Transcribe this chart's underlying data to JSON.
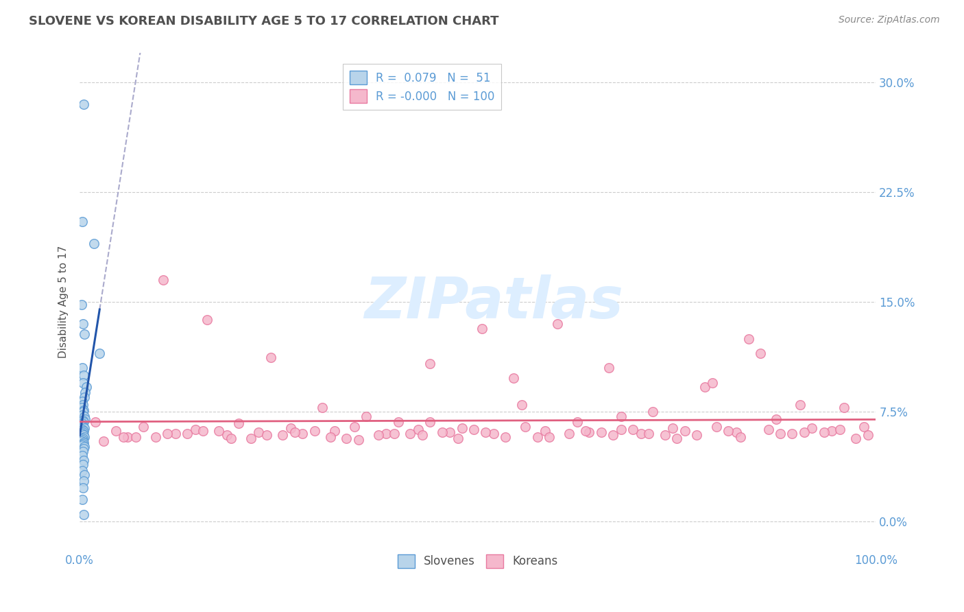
{
  "title": "SLOVENE VS KOREAN DISABILITY AGE 5 TO 17 CORRELATION CHART",
  "source_text": "Source: ZipAtlas.com",
  "ylabel": "Disability Age 5 to 17",
  "xlim": [
    0.0,
    100.0
  ],
  "ylim": [
    -2.0,
    32.0
  ],
  "ytick_labels": [
    "0.0%",
    "7.5%",
    "15.0%",
    "22.5%",
    "30.0%"
  ],
  "ytick_values": [
    0.0,
    7.5,
    15.0,
    22.5,
    30.0
  ],
  "xtick_labels": [
    "0.0%",
    "100.0%"
  ],
  "xtick_values": [
    0.0,
    100.0
  ],
  "slovene_color": "#b8d4ea",
  "korean_color": "#f5b8cc",
  "slovene_edge_color": "#5b9bd5",
  "korean_edge_color": "#e87aa0",
  "slovene_line_color": "#2255aa",
  "korean_line_color": "#e06080",
  "dashed_line_color": "#aaaacc",
  "background_color": "#ffffff",
  "grid_color": "#cccccc",
  "r_slovene": 0.079,
  "n_slovene": 51,
  "r_korean": -0.0,
  "n_korean": 100,
  "slovene_x": [
    0.5,
    0.3,
    1.8,
    0.2,
    0.4,
    0.6,
    2.5,
    0.3,
    0.5,
    0.4,
    0.8,
    0.7,
    0.6,
    0.3,
    0.4,
    0.2,
    0.5,
    0.4,
    0.3,
    0.6,
    0.7,
    0.4,
    0.5,
    0.3,
    0.2,
    0.4,
    0.6,
    0.3,
    0.5,
    0.4,
    0.3,
    0.5,
    0.6,
    0.4,
    0.3,
    0.2,
    0.5,
    0.4,
    0.3,
    0.6,
    0.5,
    0.4,
    0.3,
    0.5,
    0.4,
    0.3,
    0.6,
    0.5,
    0.4,
    0.3,
    0.5
  ],
  "slovene_y": [
    28.5,
    20.5,
    19.0,
    14.8,
    13.5,
    12.8,
    11.5,
    10.5,
    10.0,
    9.5,
    9.2,
    8.8,
    8.5,
    8.2,
    8.0,
    7.8,
    7.6,
    7.5,
    7.3,
    7.2,
    7.0,
    6.9,
    6.8,
    6.7,
    6.6,
    6.5,
    6.4,
    6.3,
    6.2,
    6.1,
    6.0,
    5.9,
    5.8,
    5.7,
    5.6,
    5.5,
    5.4,
    5.3,
    5.2,
    5.1,
    5.0,
    4.8,
    4.5,
    4.2,
    3.9,
    3.5,
    3.2,
    2.8,
    2.3,
    1.5,
    0.5
  ],
  "korean_x": [
    2.0,
    4.5,
    6.0,
    8.0,
    10.5,
    12.0,
    14.5,
    16.0,
    18.5,
    20.0,
    22.5,
    24.0,
    26.5,
    28.0,
    30.5,
    32.0,
    34.5,
    36.0,
    38.5,
    40.0,
    42.5,
    44.0,
    46.5,
    48.0,
    50.5,
    52.0,
    54.5,
    56.0,
    58.5,
    60.0,
    62.5,
    64.0,
    66.5,
    68.0,
    70.5,
    72.0,
    74.5,
    76.0,
    78.5,
    80.0,
    82.5,
    84.0,
    86.5,
    88.0,
    90.5,
    92.0,
    94.5,
    96.0,
    98.5,
    3.0,
    7.0,
    11.0,
    15.5,
    19.0,
    23.5,
    27.0,
    31.5,
    35.0,
    39.5,
    43.0,
    47.5,
    51.0,
    55.5,
    59.0,
    63.5,
    67.0,
    71.5,
    75.0,
    79.5,
    83.0,
    87.5,
    91.0,
    95.5,
    99.0,
    5.5,
    13.5,
    21.5,
    29.5,
    37.5,
    45.5,
    53.5,
    61.5,
    69.5,
    77.5,
    85.5,
    93.5,
    9.5,
    17.5,
    25.5,
    33.5,
    41.5,
    49.5,
    57.5,
    65.5,
    73.5,
    81.5,
    89.5,
    97.5,
    44.0,
    68.0
  ],
  "korean_y": [
    6.8,
    6.2,
    5.8,
    6.5,
    16.5,
    6.0,
    6.3,
    13.8,
    5.9,
    6.7,
    6.1,
    11.2,
    6.4,
    6.0,
    7.8,
    6.2,
    6.5,
    7.2,
    6.0,
    6.8,
    6.3,
    10.8,
    6.1,
    6.4,
    13.2,
    6.0,
    9.8,
    6.5,
    6.2,
    13.5,
    6.8,
    6.1,
    10.5,
    6.3,
    6.0,
    7.5,
    6.4,
    6.2,
    9.2,
    6.5,
    6.1,
    12.5,
    6.3,
    6.0,
    8.0,
    6.4,
    6.2,
    7.8,
    6.5,
    5.5,
    5.8,
    6.0,
    6.2,
    5.7,
    5.9,
    6.1,
    5.8,
    5.6,
    6.0,
    5.9,
    5.7,
    6.1,
    8.0,
    5.8,
    6.2,
    5.9,
    6.0,
    5.7,
    9.5,
    5.8,
    7.0,
    6.1,
    6.3,
    5.9,
    5.8,
    6.0,
    5.7,
    6.2,
    5.9,
    6.1,
    5.8,
    6.0,
    6.3,
    5.9,
    11.5,
    6.1,
    5.8,
    6.2,
    5.9,
    5.7,
    6.0,
    6.3,
    5.8,
    6.1,
    5.9,
    6.2,
    6.0,
    5.7,
    6.8,
    7.2
  ],
  "watermark_color": "#ddeeff",
  "title_color": "#505050",
  "axis_label_color": "#505050",
  "tick_label_color": "#5b9bd5",
  "marker_size": 8,
  "title_fontsize": 13,
  "source_fontsize": 10,
  "axis_label_fontsize": 11,
  "tick_fontsize": 12
}
